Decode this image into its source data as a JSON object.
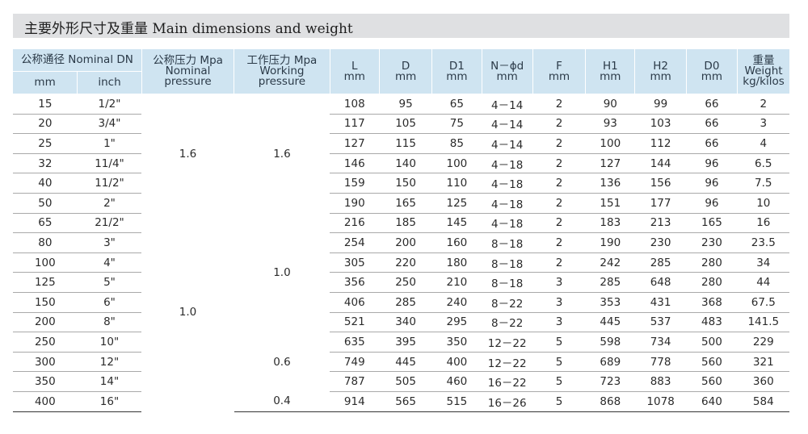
{
  "title": "主要外形尺寸及重量 Main dimensions and weight",
  "headers": {
    "nominal_dn": "公称通径 Nominal DN",
    "mm": "mm",
    "inch": "inch",
    "nominal_pressure": "公称压力 Mpa\nNominal\npressure",
    "working_pressure": "工作压力 Mpa\nWorking\npressure",
    "L": "L\nmm",
    "D": "D\nmm",
    "D1": "D1\nmm",
    "Nd": "N－ϕd\nmm",
    "F": "F\nmm",
    "H1": "H1\nmm",
    "H2": "H2\nmm",
    "D0": "D0\nmm",
    "weight": "重量\nWeight\nkg/kilos"
  },
  "nominal_pressure_groups": [
    {
      "value": "1.6",
      "rows": 6
    },
    {
      "value": "1.0",
      "rows": 10
    }
  ],
  "working_pressure_groups": [
    {
      "value": "1.6",
      "rows": 6
    },
    {
      "value": "1.0",
      "rows": 6
    },
    {
      "value": "0.6",
      "rows": 3
    },
    {
      "value": "0.4",
      "rows": 1
    }
  ],
  "rows": [
    {
      "mm": "15",
      "inch": "1/2\"",
      "L": "108",
      "D": "95",
      "D1": "65",
      "Nd": "4－14",
      "F": "2",
      "H1": "90",
      "H2": "99",
      "D0": "66",
      "W": "2"
    },
    {
      "mm": "20",
      "inch": "3/4\"",
      "L": "117",
      "D": "105",
      "D1": "75",
      "Nd": "4－14",
      "F": "2",
      "H1": "93",
      "H2": "103",
      "D0": "66",
      "W": "3"
    },
    {
      "mm": "25",
      "inch": "1\"",
      "L": "127",
      "D": "115",
      "D1": "85",
      "Nd": "4－14",
      "F": "2",
      "H1": "100",
      "H2": "112",
      "D0": "66",
      "W": "4"
    },
    {
      "mm": "32",
      "inch": "11/4\"",
      "L": "146",
      "D": "140",
      "D1": "100",
      "Nd": "4－18",
      "F": "2",
      "H1": "127",
      "H2": "144",
      "D0": "96",
      "W": "6.5"
    },
    {
      "mm": "40",
      "inch": "11/2\"",
      "L": "159",
      "D": "150",
      "D1": "110",
      "Nd": "4－18",
      "F": "2",
      "H1": "136",
      "H2": "156",
      "D0": "96",
      "W": "7.5"
    },
    {
      "mm": "50",
      "inch": "2\"",
      "L": "190",
      "D": "165",
      "D1": "125",
      "Nd": "4－18",
      "F": "2",
      "H1": "151",
      "H2": "177",
      "D0": "96",
      "W": "10"
    },
    {
      "mm": "65",
      "inch": "21/2\"",
      "L": "216",
      "D": "185",
      "D1": "145",
      "Nd": "4－18",
      "F": "2",
      "H1": "183",
      "H2": "213",
      "D0": "165",
      "W": "16"
    },
    {
      "mm": "80",
      "inch": "3\"",
      "L": "254",
      "D": "200",
      "D1": "160",
      "Nd": "8－18",
      "F": "2",
      "H1": "190",
      "H2": "230",
      "D0": "230",
      "W": "23.5"
    },
    {
      "mm": "100",
      "inch": "4\"",
      "L": "305",
      "D": "220",
      "D1": "180",
      "Nd": "8－18",
      "F": "2",
      "H1": "242",
      "H2": "285",
      "D0": "280",
      "W": "34"
    },
    {
      "mm": "125",
      "inch": "5\"",
      "L": "356",
      "D": "250",
      "D1": "210",
      "Nd": "8－18",
      "F": "3",
      "H1": "285",
      "H2": "648",
      "D0": "280",
      "W": "44"
    },
    {
      "mm": "150",
      "inch": "6\"",
      "L": "406",
      "D": "285",
      "D1": "240",
      "Nd": "8－22",
      "F": "3",
      "H1": "353",
      "H2": "431",
      "D0": "368",
      "W": "67.5"
    },
    {
      "mm": "200",
      "inch": "8\"",
      "L": "521",
      "D": "340",
      "D1": "295",
      "Nd": "8－22",
      "F": "3",
      "H1": "445",
      "H2": "537",
      "D0": "483",
      "W": "141.5"
    },
    {
      "mm": "250",
      "inch": "10\"",
      "L": "635",
      "D": "395",
      "D1": "350",
      "Nd": "12－22",
      "F": "5",
      "H1": "598",
      "H2": "734",
      "D0": "500",
      "W": "229"
    },
    {
      "mm": "300",
      "inch": "12\"",
      "L": "749",
      "D": "445",
      "D1": "400",
      "Nd": "12－22",
      "F": "5",
      "H1": "689",
      "H2": "778",
      "D0": "560",
      "W": "321"
    },
    {
      "mm": "350",
      "inch": "14\"",
      "L": "787",
      "D": "505",
      "D1": "460",
      "Nd": "16－22",
      "F": "5",
      "H1": "723",
      "H2": "883",
      "D0": "560",
      "W": "360"
    },
    {
      "mm": "400",
      "inch": "16\"",
      "L": "914",
      "D": "565",
      "D1": "515",
      "Nd": "16－26",
      "F": "5",
      "H1": "868",
      "H2": "1078",
      "D0": "640",
      "W": "584"
    }
  ],
  "colors": {
    "header_bg": "#cfe4f1",
    "title_bar_bg": "#dfe0e2",
    "rule": "#a9a9a9"
  }
}
